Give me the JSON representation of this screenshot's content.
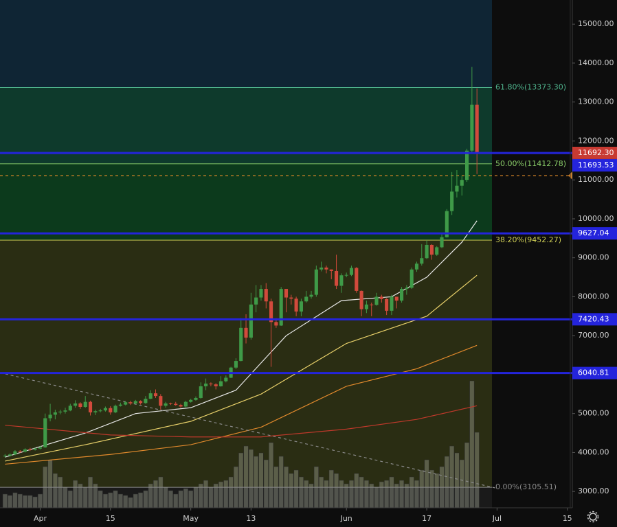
{
  "chart_data": {
    "type": "candlestick",
    "x": [
      "03-25",
      "03-26",
      "03-27",
      "03-28",
      "03-29",
      "03-30",
      "03-31",
      "04-01",
      "04-02",
      "04-03",
      "04-04",
      "04-05",
      "04-06",
      "04-07",
      "04-08",
      "04-09",
      "04-10",
      "04-11",
      "04-12",
      "04-13",
      "04-14",
      "04-15",
      "04-16",
      "04-17",
      "04-18",
      "04-19",
      "04-20",
      "04-21",
      "04-22",
      "04-23",
      "04-24",
      "04-25",
      "04-26",
      "04-27",
      "04-28",
      "04-29",
      "04-30",
      "05-01",
      "05-02",
      "05-03",
      "05-04",
      "05-05",
      "05-06",
      "05-07",
      "05-08",
      "05-09",
      "05-10",
      "05-11",
      "05-12",
      "05-13",
      "05-14",
      "05-15",
      "05-16",
      "05-17",
      "05-18",
      "05-19",
      "05-20",
      "05-21",
      "05-22",
      "05-23",
      "05-24",
      "05-25",
      "05-26",
      "05-27",
      "05-28",
      "05-29",
      "05-30",
      "05-31",
      "06-01",
      "06-02",
      "06-03",
      "06-04",
      "06-05",
      "06-06",
      "06-07",
      "06-08",
      "06-09",
      "06-10",
      "06-11",
      "06-12",
      "06-13",
      "06-14",
      "06-15",
      "06-16",
      "06-17",
      "06-18",
      "06-19",
      "06-20",
      "06-21",
      "06-22",
      "06-23",
      "06-24",
      "06-25",
      "06-26",
      "06-27"
    ],
    "open": [
      3900,
      3920,
      3950,
      4030,
      4020,
      4080,
      4070,
      4100,
      4130,
      4880,
      4970,
      5030,
      5050,
      5080,
      5200,
      5260,
      5170,
      5300,
      5030,
      5060,
      5080,
      5140,
      5030,
      5200,
      5230,
      5290,
      5260,
      5320,
      5270,
      5380,
      5520,
      5450,
      5200,
      5260,
      5250,
      5220,
      5180,
      5300,
      5350,
      5400,
      5700,
      5770,
      5750,
      5700,
      5830,
      5920,
      6180,
      6350,
      7200,
      6950,
      7800,
      7980,
      8200,
      7880,
      7350,
      7260,
      8200,
      7980,
      7950,
      7620,
      7880,
      8000,
      8050,
      8700,
      8750,
      8700,
      8660,
      8280,
      8550,
      8560,
      8740,
      8150,
      7680,
      7800,
      7790,
      8000,
      7940,
      7640,
      8000,
      7900,
      8200,
      8230,
      8700,
      8850,
      8990,
      9330,
      9080,
      9270,
      9530,
      10200,
      10700,
      10850,
      11000,
      11750,
      12930
    ],
    "high": [
      3960,
      3980,
      4060,
      4060,
      4110,
      4120,
      4120,
      4170,
      5000,
      5250,
      5100,
      5100,
      5150,
      5250,
      5340,
      5290,
      5450,
      5330,
      5100,
      5120,
      5180,
      5190,
      5230,
      5280,
      5320,
      5330,
      5350,
      5340,
      5450,
      5600,
      5620,
      5500,
      5300,
      5280,
      5300,
      5250,
      5330,
      5380,
      5440,
      5800,
      5900,
      5800,
      5780,
      5960,
      5980,
      6200,
      6420,
      7450,
      7550,
      8100,
      8300,
      8300,
      8350,
      7950,
      7450,
      8250,
      8200,
      8050,
      8000,
      7950,
      8150,
      8150,
      8800,
      8900,
      8800,
      8700,
      9080,
      8600,
      8620,
      8800,
      8760,
      8160,
      7900,
      7850,
      8100,
      8050,
      7960,
      8050,
      8000,
      8250,
      8300,
      8750,
      8900,
      9350,
      9450,
      9350,
      9300,
      9600,
      10250,
      11200,
      11250,
      11100,
      11800,
      13900,
      13350
    ],
    "low": [
      3880,
      3900,
      3930,
      3990,
      4000,
      4040,
      4050,
      4080,
      4120,
      4800,
      4850,
      4980,
      5000,
      5060,
      5150,
      5120,
      5150,
      4950,
      4960,
      5030,
      5050,
      4970,
      5010,
      5180,
      5210,
      5220,
      5240,
      5230,
      5250,
      5370,
      5400,
      5100,
      5150,
      5220,
      5200,
      5150,
      5160,
      5280,
      5330,
      5380,
      5600,
      5700,
      5620,
      5690,
      5800,
      5910,
      6140,
      6340,
      6800,
      6900,
      7600,
      7900,
      7700,
      6200,
      7200,
      7250,
      7600,
      7800,
      7500,
      7500,
      7850,
      7950,
      8000,
      8650,
      8600,
      8450,
      8200,
      8100,
      8500,
      8530,
      8100,
      7500,
      7580,
      7500,
      7770,
      7850,
      7530,
      7530,
      7700,
      7850,
      8050,
      8200,
      8640,
      8800,
      8970,
      8950,
      9050,
      9250,
      9520,
      10100,
      10550,
      10600,
      10950,
      11700,
      11150
    ],
    "close": [
      3920,
      3950,
      4030,
      4020,
      4080,
      4070,
      4100,
      4130,
      4880,
      4970,
      5030,
      5050,
      5080,
      5200,
      5260,
      5170,
      5300,
      5030,
      5060,
      5080,
      5140,
      5030,
      5200,
      5230,
      5290,
      5260,
      5320,
      5270,
      5380,
      5520,
      5450,
      5200,
      5260,
      5250,
      5220,
      5180,
      5300,
      5350,
      5400,
      5700,
      5770,
      5750,
      5700,
      5830,
      5920,
      6180,
      6350,
      7200,
      6950,
      7800,
      7980,
      8200,
      7880,
      7350,
      7260,
      8200,
      7980,
      7950,
      7620,
      7880,
      8000,
      8050,
      8700,
      8750,
      8700,
      8660,
      8280,
      8550,
      8560,
      8740,
      8150,
      7680,
      7800,
      7790,
      8000,
      7940,
      7640,
      8000,
      7900,
      8200,
      8230,
      8700,
      8850,
      8990,
      9330,
      9080,
      9270,
      9530,
      10200,
      10700,
      10850,
      11000,
      11750,
      12930,
      11692
    ],
    "up_color": "#3f9a48",
    "down_color": "#d24a3c",
    "volume": [
      20,
      18,
      22,
      20,
      18,
      18,
      16,
      20,
      60,
      70,
      50,
      45,
      30,
      25,
      40,
      35,
      30,
      45,
      35,
      25,
      20,
      22,
      25,
      20,
      18,
      15,
      20,
      22,
      25,
      35,
      40,
      45,
      30,
      25,
      20,
      25,
      28,
      25,
      30,
      35,
      40,
      30,
      35,
      38,
      40,
      45,
      60,
      80,
      90,
      85,
      75,
      80,
      70,
      95,
      60,
      75,
      60,
      50,
      55,
      45,
      40,
      35,
      60,
      45,
      40,
      55,
      50,
      40,
      35,
      40,
      50,
      45,
      40,
      35,
      30,
      38,
      40,
      45,
      35,
      40,
      35,
      45,
      40,
      55,
      70,
      55,
      50,
      60,
      75,
      90,
      80,
      70,
      95,
      185,
      110
    ],
    "volume_color": "rgba(150,155,140,0.45)",
    "moving_averages": [
      {
        "color": "#e8e8e8",
        "x": [
          "03-25",
          "04-10",
          "04-20",
          "05-01",
          "05-10",
          "05-15",
          "05-20",
          "05-31",
          "06-10",
          "06-17",
          "06-24",
          "06-27"
        ],
        "values": [
          3880,
          4500,
          5000,
          5150,
          5600,
          6300,
          7000,
          7900,
          8000,
          8500,
          9400,
          9950
        ]
      },
      {
        "color": "#e8d06a",
        "x": [
          "03-25",
          "04-10",
          "05-01",
          "05-15",
          "06-01",
          "06-17",
          "06-27"
        ],
        "values": [
          3780,
          4200,
          4800,
          5500,
          6800,
          7500,
          8550
        ]
      },
      {
        "color": "#e0892c",
        "x": [
          "03-25",
          "04-15",
          "05-01",
          "05-15",
          "06-01",
          "06-15",
          "06-27"
        ],
        "values": [
          3700,
          3950,
          4200,
          4650,
          5700,
          6150,
          6750
        ]
      },
      {
        "color": "#c0392b",
        "x": [
          "03-25",
          "04-15",
          "05-01",
          "05-15",
          "06-01",
          "06-15",
          "06-27"
        ],
        "values": [
          4700,
          4450,
          4400,
          4400,
          4600,
          4850,
          5200
        ]
      }
    ],
    "trend_line": {
      "color": "#8a8a8a",
      "x": [
        "03-24",
        "07-01"
      ],
      "values": [
        6050,
        3080
      ]
    },
    "fib_levels": [
      {
        "value": 13373.3,
        "label": "61.80%(13373.30)",
        "color": "#4fb38c",
        "fill": "#0f2534"
      },
      {
        "value": 11412.78,
        "label": "50.00%(11412.78)",
        "color": "#8bcf6a",
        "fill": "#0e3a2c"
      },
      {
        "value": 9452.27,
        "label": "38.20%(9452.27)",
        "color": "#cfcf55",
        "fill": "#0c3a1c"
      },
      {
        "value": 3105.51,
        "label": "0.00%(3105.51)",
        "color": "#8a8a8a",
        "fill": "#2a2d13"
      }
    ],
    "levels": [
      11693.53,
      9627.04,
      7420.43,
      6040.81
    ],
    "level_color": "#2424dc",
    "last_price": {
      "value": 11692.3,
      "label": "11692.30"
    },
    "last_price_color": "#c83a32",
    "dashed_level": 11110,
    "dashed_color": "#e08a2a",
    "xlim": [
      "03-24",
      "07-16"
    ],
    "xticks": [
      {
        "value": "04-01",
        "label": "Apr"
      },
      {
        "value": "04-15",
        "label": "15"
      },
      {
        "value": "05-01",
        "label": "May"
      },
      {
        "value": "05-13",
        "label": "13"
      },
      {
        "value": "06-01",
        "label": "Jun"
      },
      {
        "value": "06-17",
        "label": "17"
      },
      {
        "value": "07-01",
        "label": "Jul"
      },
      {
        "value": "07-15",
        "label": "15"
      }
    ],
    "ylim": [
      2580,
      15620
    ],
    "yticks": [
      {
        "value": 3000,
        "label": "3000.00"
      },
      {
        "value": 4000,
        "label": "4000.00"
      },
      {
        "value": 5000,
        "label": "5000.00"
      },
      {
        "value": 6000,
        "label": "6000.00"
      },
      {
        "value": 7000,
        "label": "7000.00"
      },
      {
        "value": 8000,
        "label": "8000.00"
      },
      {
        "value": 9000,
        "label": "9000.00"
      },
      {
        "value": 10000,
        "label": "10000.00"
      },
      {
        "value": 11000,
        "label": "11000.00"
      },
      {
        "value": 12000,
        "label": "12000.00"
      },
      {
        "value": 13000,
        "label": "13000.00"
      },
      {
        "value": 14000,
        "label": "14000.00"
      },
      {
        "value": 15000,
        "label": "15000.00"
      }
    ]
  }
}
